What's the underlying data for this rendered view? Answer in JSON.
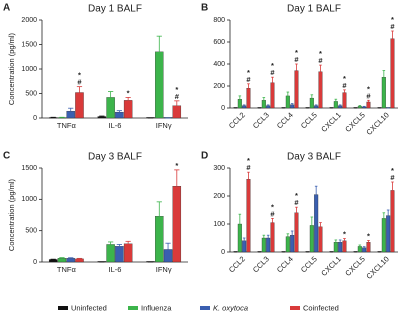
{
  "chart_data": [
    {
      "type": "bar",
      "panel": "A",
      "title": "Day 1 BALF",
      "y_label": "Concentration (pg/ml)",
      "categories": [
        "TNFα",
        "IL-6",
        "IFNγ"
      ],
      "series": [
        {
          "values": [
            10,
            30,
            0
          ],
          "errors": [
            5,
            10,
            0
          ]
        },
        {
          "values": [
            10,
            420,
            1350
          ],
          "errors": [
            5,
            120,
            320
          ]
        },
        {
          "values": [
            140,
            120,
            0
          ],
          "errors": [
            60,
            30,
            0
          ]
        },
        {
          "values": [
            520,
            360,
            250
          ],
          "errors": [
            120,
            60,
            100
          ],
          "annotations": [
            [
              "*",
              "#"
            ],
            [
              "*"
            ],
            [
              "*",
              "#"
            ]
          ]
        }
      ],
      "ylim": [
        0,
        2000
      ],
      "yticks": [
        0,
        500,
        1000,
        1500,
        2000
      ]
    },
    {
      "type": "bar",
      "panel": "B",
      "title": "Day 1 BALF",
      "categories": [
        "CCL2",
        "CCL3",
        "CCL4",
        "CCL5",
        "CXCL1",
        "CXCL5",
        "CXCL10"
      ],
      "series": [
        {
          "values": [
            0,
            0,
            0,
            0,
            0,
            0,
            0
          ],
          "errors": [
            0,
            0,
            0,
            0,
            0,
            0,
            0
          ]
        },
        {
          "values": [
            80,
            70,
            110,
            90,
            60,
            15,
            280
          ],
          "errors": [
            30,
            25,
            35,
            30,
            20,
            8,
            60
          ]
        },
        {
          "values": [
            20,
            20,
            30,
            20,
            20,
            10,
            0
          ],
          "errors": [
            8,
            8,
            10,
            8,
            8,
            5,
            0
          ]
        },
        {
          "values": [
            180,
            230,
            340,
            330,
            140,
            55,
            630
          ],
          "errors": [
            40,
            50,
            60,
            60,
            25,
            15,
            70
          ],
          "annotations": [
            [
              "*",
              "#"
            ],
            [
              "*",
              "#"
            ],
            [
              "*",
              "#"
            ],
            [
              "*",
              "#"
            ],
            [
              "*",
              "#"
            ],
            [
              "*",
              "#"
            ],
            [
              "*",
              "#"
            ]
          ]
        }
      ],
      "ylim": [
        0,
        800
      ],
      "yticks": [
        0,
        200,
        400,
        600,
        800
      ]
    },
    {
      "type": "bar",
      "panel": "C",
      "title": "Day 3 BALF",
      "y_label": "Concentration (pg/ml)",
      "categories": [
        "TNFα",
        "IL-6",
        "IFNγ"
      ],
      "series": [
        {
          "values": [
            40,
            0,
            0
          ],
          "errors": [
            5,
            0,
            0
          ]
        },
        {
          "values": [
            60,
            280,
            730
          ],
          "errors": [
            10,
            40,
            230
          ]
        },
        {
          "values": [
            60,
            250,
            200
          ],
          "errors": [
            8,
            30,
            100
          ]
        },
        {
          "values": [
            50,
            290,
            1210
          ],
          "errors": [
            8,
            40,
            260
          ],
          "annotations": [
            null,
            null,
            [
              "*"
            ]
          ]
        }
      ],
      "ylim": [
        0,
        1500
      ],
      "yticks": [
        0,
        500,
        1000,
        1500
      ]
    },
    {
      "type": "bar",
      "panel": "D",
      "title": "Day 3 BALF",
      "categories": [
        "CCL2",
        "CCL3",
        "CCL4",
        "CCL5",
        "CXCL1",
        "CXCL5",
        "CXCL10"
      ],
      "series": [
        {
          "values": [
            0,
            0,
            0,
            0,
            0,
            0,
            0
          ],
          "errors": [
            0,
            0,
            0,
            0,
            0,
            0,
            0
          ]
        },
        {
          "values": [
            100,
            50,
            55,
            95,
            35,
            20,
            120
          ],
          "errors": [
            35,
            10,
            10,
            30,
            8,
            5,
            20
          ]
        },
        {
          "values": [
            40,
            50,
            60,
            205,
            35,
            15,
            130
          ],
          "errors": [
            10,
            10,
            15,
            30,
            8,
            4,
            20
          ]
        },
        {
          "values": [
            260,
            105,
            140,
            90,
            40,
            35,
            220
          ],
          "errors": [
            25,
            15,
            20,
            15,
            8,
            6,
            30
          ],
          "annotations": [
            [
              "*",
              "#"
            ],
            [
              "*",
              "#"
            ],
            [
              "*",
              "#"
            ],
            null,
            [
              "*"
            ],
            [
              "*"
            ],
            [
              "*",
              "#"
            ]
          ]
        }
      ],
      "ylim": [
        0,
        300
      ],
      "yticks": [
        0,
        100,
        200,
        300
      ]
    }
  ],
  "legend": [
    {
      "name": "Uninfected",
      "color": "#111111"
    },
    {
      "name": "Influenza",
      "color": "#3cb44b"
    },
    {
      "name": "K. oxytoca",
      "color": "#3a5fb0"
    },
    {
      "name": "Coinfected",
      "color": "#d93a3a"
    }
  ]
}
